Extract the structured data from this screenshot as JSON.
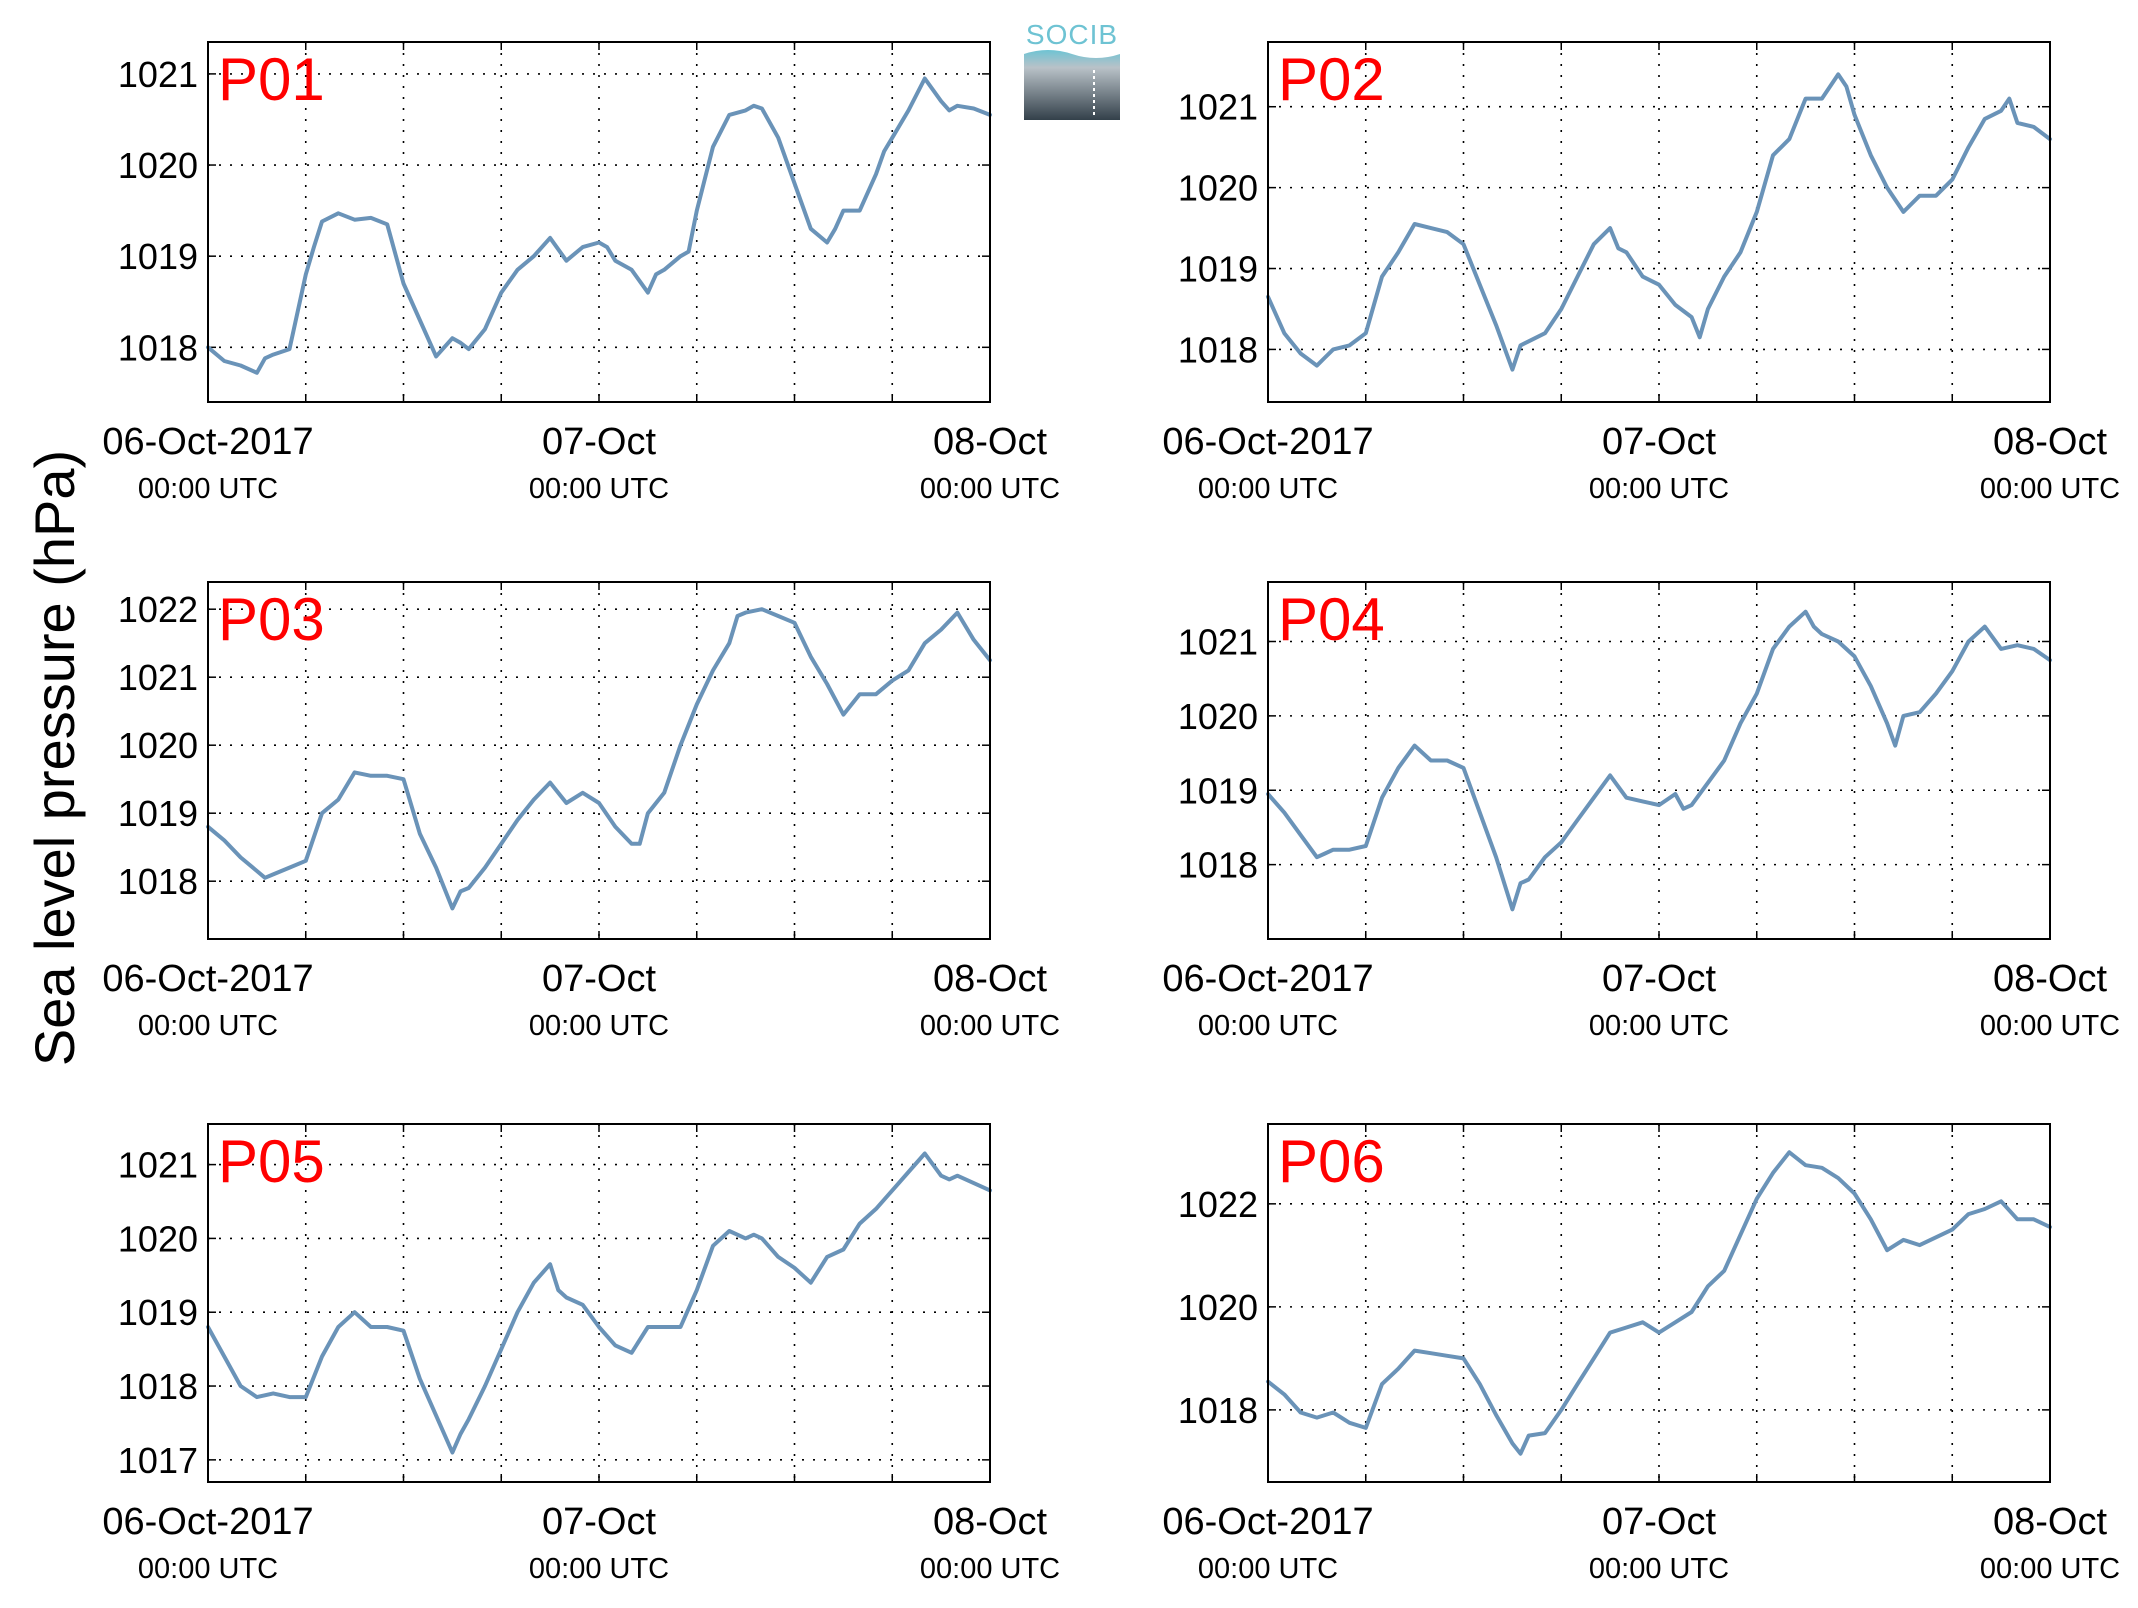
{
  "figure": {
    "ylabel": "Sea level pressure (hPa)",
    "logo_text": "SOCIB",
    "colors": {
      "line": "#6a93b8",
      "label": "#ff0000",
      "axes": "#000000",
      "grid": "#000000"
    }
  },
  "chart_data": [
    {
      "type": "line",
      "panel": "P01",
      "label": "P01",
      "ylim": [
        1017.4,
        1021.35
      ],
      "yticks": [
        1018,
        1019,
        1020,
        1021
      ],
      "ytick_labels": [
        "1018",
        "1019",
        "1020",
        "1021"
      ],
      "xlim_hours": [
        0,
        48
      ],
      "x_ticks": [
        {
          "date": "06-Oct-2017",
          "time": "00:00 UTC"
        },
        {
          "date": "07-Oct",
          "time": "00:00 UTC"
        },
        {
          "date": "08-Oct",
          "time": "00:00 UTC"
        }
      ],
      "grid": true,
      "series": [
        {
          "x": [
            0,
            1,
            2,
            3,
            3.5,
            4,
            5,
            6,
            6.5,
            7,
            8,
            9,
            10,
            11,
            12,
            13,
            14,
            15,
            15.5,
            16,
            17,
            18,
            19,
            20,
            21,
            22,
            23,
            24,
            24.5,
            25,
            26,
            27,
            27.5,
            28,
            29,
            29.5,
            30,
            31,
            32,
            33,
            33.5,
            34,
            35,
            36,
            37,
            38,
            38.5,
            39,
            40,
            41,
            41.5,
            42,
            43,
            44,
            45,
            45.5,
            46,
            47,
            48
          ],
          "y": [
            1018.0,
            1017.85,
            1017.8,
            1017.72,
            1017.88,
            1017.92,
            1017.98,
            1018.8,
            1019.1,
            1019.38,
            1019.47,
            1019.4,
            1019.42,
            1019.35,
            1018.7,
            1018.3,
            1017.9,
            1018.1,
            1018.05,
            1017.98,
            1018.2,
            1018.6,
            1018.85,
            1019.0,
            1019.2,
            1018.95,
            1019.1,
            1019.15,
            1019.1,
            1018.95,
            1018.85,
            1018.6,
            1018.8,
            1018.85,
            1019.0,
            1019.05,
            1019.5,
            1020.2,
            1020.55,
            1020.6,
            1020.65,
            1020.62,
            1020.3,
            1019.8,
            1019.3,
            1019.15,
            1019.3,
            1019.5,
            1019.5,
            1019.9,
            1020.15,
            1020.3,
            1020.6,
            1020.95,
            1020.7,
            1020.6,
            1020.65,
            1020.62,
            1020.55
          ]
        }
      ]
    },
    {
      "type": "line",
      "panel": "P02",
      "label": "P02",
      "ylim": [
        1017.35,
        1021.8
      ],
      "yticks": [
        1018,
        1019,
        1020,
        1021
      ],
      "ytick_labels": [
        "1018",
        "1019",
        "1020",
        "1021"
      ],
      "xlim_hours": [
        0,
        48
      ],
      "x_ticks": [
        {
          "date": "06-Oct-2017",
          "time": "00:00 UTC"
        },
        {
          "date": "07-Oct",
          "time": "00:00 UTC"
        },
        {
          "date": "08-Oct",
          "time": "00:00 UTC"
        }
      ],
      "grid": true,
      "series": [
        {
          "x": [
            0,
            1,
            2,
            3,
            3.5,
            4,
            5,
            6,
            7,
            8,
            9,
            10,
            11,
            12,
            13,
            14,
            15,
            15.5,
            16,
            17,
            18,
            19,
            20,
            21,
            21.5,
            22,
            23,
            24,
            25,
            26,
            26.5,
            27,
            28,
            29,
            30,
            31,
            31.5,
            32,
            33,
            34,
            35,
            35.5,
            36,
            37,
            38,
            39,
            40,
            41,
            42,
            43,
            44,
            45,
            45.5,
            46,
            47,
            48
          ],
          "y": [
            1018.65,
            1018.2,
            1017.95,
            1017.8,
            1017.9,
            1018.0,
            1018.05,
            1018.2,
            1018.9,
            1019.2,
            1019.55,
            1019.5,
            1019.45,
            1019.3,
            1018.8,
            1018.3,
            1017.75,
            1018.05,
            1018.1,
            1018.2,
            1018.5,
            1018.9,
            1019.3,
            1019.5,
            1019.25,
            1019.2,
            1018.9,
            1018.8,
            1018.55,
            1018.4,
            1018.15,
            1018.5,
            1018.9,
            1019.2,
            1019.7,
            1020.4,
            1020.5,
            1020.6,
            1021.1,
            1021.1,
            1021.4,
            1021.25,
            1020.9,
            1020.4,
            1020.0,
            1019.7,
            1019.9,
            1019.9,
            1020.1,
            1020.5,
            1020.85,
            1020.95,
            1021.1,
            1020.8,
            1020.75,
            1020.6
          ]
        }
      ]
    },
    {
      "type": "line",
      "panel": "P03",
      "label": "P03",
      "ylim": [
        1017.15,
        1022.4
      ],
      "yticks": [
        1018,
        1019,
        1020,
        1021,
        1022
      ],
      "ytick_labels": [
        "1018",
        "1019",
        "1020",
        "1021",
        "1022"
      ],
      "xlim_hours": [
        0,
        48
      ],
      "x_ticks": [
        {
          "date": "06-Oct-2017",
          "time": "00:00 UTC"
        },
        {
          "date": "07-Oct",
          "time": "00:00 UTC"
        },
        {
          "date": "08-Oct",
          "time": "00:00 UTC"
        }
      ],
      "grid": true,
      "series": [
        {
          "x": [
            0,
            1,
            2,
            3,
            3.5,
            4,
            5,
            6,
            7,
            8,
            9,
            10,
            11,
            12,
            13,
            14,
            15,
            15.5,
            16,
            17,
            18,
            19,
            20,
            21,
            22,
            23,
            24,
            25,
            26,
            26.5,
            27,
            28,
            29,
            30,
            31,
            32,
            32.5,
            33,
            34,
            35,
            36,
            37,
            38,
            39,
            40,
            41,
            42,
            43,
            44,
            45,
            46,
            47,
            48
          ],
          "y": [
            1018.8,
            1018.6,
            1018.35,
            1018.15,
            1018.05,
            1018.1,
            1018.2,
            1018.3,
            1019.0,
            1019.2,
            1019.6,
            1019.55,
            1019.55,
            1019.5,
            1018.7,
            1018.2,
            1017.6,
            1017.85,
            1017.9,
            1018.2,
            1018.55,
            1018.9,
            1019.2,
            1019.45,
            1019.15,
            1019.3,
            1019.15,
            1018.8,
            1018.55,
            1018.55,
            1019.0,
            1019.3,
            1020.0,
            1020.6,
            1021.1,
            1021.5,
            1021.9,
            1021.95,
            1022.0,
            1021.9,
            1021.8,
            1021.3,
            1020.9,
            1020.45,
            1020.75,
            1020.75,
            1020.95,
            1021.1,
            1021.5,
            1021.7,
            1021.95,
            1021.55,
            1021.25
          ]
        }
      ]
    },
    {
      "type": "line",
      "panel": "P04",
      "label": "P04",
      "ylim": [
        1017.0,
        1021.8
      ],
      "yticks": [
        1018,
        1019,
        1020,
        1021
      ],
      "ytick_labels": [
        "1018",
        "1019",
        "1020",
        "1021"
      ],
      "xlim_hours": [
        0,
        48
      ],
      "x_ticks": [
        {
          "date": "06-Oct-2017",
          "time": "00:00 UTC"
        },
        {
          "date": "07-Oct",
          "time": "00:00 UTC"
        },
        {
          "date": "08-Oct",
          "time": "00:00 UTC"
        }
      ],
      "grid": true,
      "series": [
        {
          "x": [
            0,
            1,
            2,
            3,
            3.5,
            4,
            5,
            6,
            7,
            8,
            9,
            10,
            11,
            12,
            13,
            14,
            15,
            15.5,
            16,
            17,
            18,
            19,
            20,
            21,
            22,
            23,
            24,
            25,
            25.5,
            26,
            27,
            28,
            29,
            30,
            31,
            32,
            33,
            33.5,
            34,
            35,
            36,
            37,
            38,
            38.5,
            39,
            40,
            41,
            42,
            43,
            44,
            45,
            46,
            47,
            48
          ],
          "y": [
            1018.95,
            1018.7,
            1018.4,
            1018.1,
            1018.15,
            1018.2,
            1018.2,
            1018.25,
            1018.9,
            1019.3,
            1019.6,
            1019.4,
            1019.4,
            1019.3,
            1018.7,
            1018.1,
            1017.4,
            1017.75,
            1017.8,
            1018.1,
            1018.3,
            1018.6,
            1018.9,
            1019.2,
            1018.9,
            1018.85,
            1018.8,
            1018.95,
            1018.75,
            1018.8,
            1019.1,
            1019.4,
            1019.9,
            1020.3,
            1020.9,
            1021.2,
            1021.4,
            1021.2,
            1021.1,
            1021.0,
            1020.8,
            1020.4,
            1019.9,
            1019.6,
            1020.0,
            1020.05,
            1020.3,
            1020.6,
            1021.0,
            1021.2,
            1020.9,
            1020.95,
            1020.9,
            1020.75
          ]
        }
      ]
    },
    {
      "type": "line",
      "panel": "P05",
      "label": "P05",
      "ylim": [
        1016.7,
        1021.55
      ],
      "yticks": [
        1017,
        1018,
        1019,
        1020,
        1021
      ],
      "ytick_labels": [
        "1017",
        "1018",
        "1019",
        "1020",
        "1021"
      ],
      "xlim_hours": [
        0,
        48
      ],
      "x_ticks": [
        {
          "date": "06-Oct-2017",
          "time": "00:00 UTC"
        },
        {
          "date": "07-Oct",
          "time": "00:00 UTC"
        },
        {
          "date": "08-Oct",
          "time": "00:00 UTC"
        }
      ],
      "grid": true,
      "series": [
        {
          "x": [
            0,
            1,
            2,
            3,
            4,
            5,
            6,
            7,
            8,
            9,
            10,
            11,
            12,
            13,
            14,
            15,
            15.5,
            16,
            17,
            18,
            19,
            20,
            21,
            21.5,
            22,
            23,
            24,
            25,
            26,
            27,
            28,
            29,
            30,
            31,
            32,
            33,
            33.5,
            34,
            35,
            36,
            37,
            38,
            39,
            40,
            41,
            42,
            43,
            44,
            45,
            45.5,
            46,
            47,
            48
          ],
          "y": [
            1018.8,
            1018.4,
            1018.0,
            1017.85,
            1017.9,
            1017.85,
            1017.85,
            1018.4,
            1018.8,
            1019.0,
            1018.8,
            1018.8,
            1018.75,
            1018.1,
            1017.6,
            1017.1,
            1017.35,
            1017.55,
            1018.0,
            1018.5,
            1019.0,
            1019.4,
            1019.65,
            1019.3,
            1019.2,
            1019.1,
            1018.8,
            1018.55,
            1018.45,
            1018.8,
            1018.8,
            1018.8,
            1019.3,
            1019.9,
            1020.1,
            1020.0,
            1020.05,
            1020.0,
            1019.75,
            1019.6,
            1019.4,
            1019.75,
            1019.85,
            1020.2,
            1020.4,
            1020.65,
            1020.9,
            1021.15,
            1020.85,
            1020.8,
            1020.85,
            1020.75,
            1020.65
          ]
        }
      ]
    },
    {
      "type": "line",
      "panel": "P06",
      "label": "P06",
      "ylim": [
        1016.6,
        1023.55
      ],
      "yticks": [
        1018,
        1020,
        1022
      ],
      "ytick_labels": [
        "1018",
        "1020",
        "1022"
      ],
      "xlim_hours": [
        0,
        48
      ],
      "x_ticks": [
        {
          "date": "06-Oct-2017",
          "time": "00:00 UTC"
        },
        {
          "date": "07-Oct",
          "time": "00:00 UTC"
        },
        {
          "date": "08-Oct",
          "time": "00:00 UTC"
        }
      ],
      "grid": true,
      "series": [
        {
          "x": [
            0,
            1,
            2,
            3,
            4,
            5,
            6,
            7,
            8,
            9,
            10,
            11,
            12,
            13,
            14,
            15,
            15.5,
            16,
            17,
            18,
            19,
            20,
            21,
            22,
            23,
            24,
            25,
            26,
            27,
            28,
            29,
            30,
            31,
            32,
            33,
            34,
            35,
            36,
            37,
            38,
            39,
            40,
            41,
            42,
            43,
            44,
            45,
            46,
            47,
            48
          ],
          "y": [
            1018.55,
            1018.3,
            1017.95,
            1017.85,
            1017.95,
            1017.75,
            1017.65,
            1018.5,
            1018.8,
            1019.15,
            1019.1,
            1019.05,
            1019.0,
            1018.5,
            1017.9,
            1017.35,
            1017.15,
            1017.5,
            1017.55,
            1018.0,
            1018.5,
            1019.0,
            1019.5,
            1019.6,
            1019.7,
            1019.5,
            1019.7,
            1019.9,
            1020.4,
            1020.7,
            1021.4,
            1022.1,
            1022.6,
            1023.0,
            1022.75,
            1022.7,
            1022.5,
            1022.2,
            1021.7,
            1021.1,
            1021.3,
            1021.2,
            1021.35,
            1021.5,
            1021.8,
            1021.9,
            1022.05,
            1021.7,
            1021.7,
            1021.55
          ]
        }
      ]
    }
  ]
}
